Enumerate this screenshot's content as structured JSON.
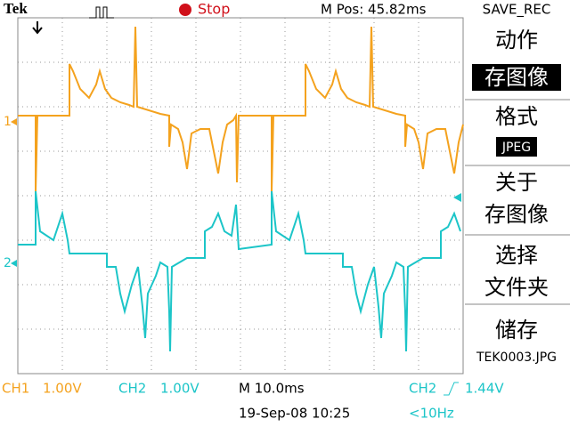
{
  "header": {
    "brand": "Tek",
    "status": "Stop",
    "position": "M Pos: 45.82ms",
    "menu_title": "SAVE_REC"
  },
  "menu": {
    "action_label": "动作",
    "action_value": "存图像",
    "format_label": "格式",
    "format_value": "JPEG",
    "about_1": "关于",
    "about_2": "存图像",
    "select_1": "选择",
    "select_2": "文件夹",
    "save_label": "储存",
    "save_file": "TEK0003.JPG"
  },
  "markers": {
    "ch1": "1",
    "ch2": "2"
  },
  "footer": {
    "ch1_name": "CH1",
    "ch1_scale": "1.00V",
    "ch2_name": "CH2",
    "ch2_scale": "1.00V",
    "time_scale": "M 10.0ms",
    "trigger_source": "CH2",
    "trigger_level": "1.44V",
    "timestamp": "19-Sep-08 10:25",
    "frequency": "<10Hz"
  }
}
